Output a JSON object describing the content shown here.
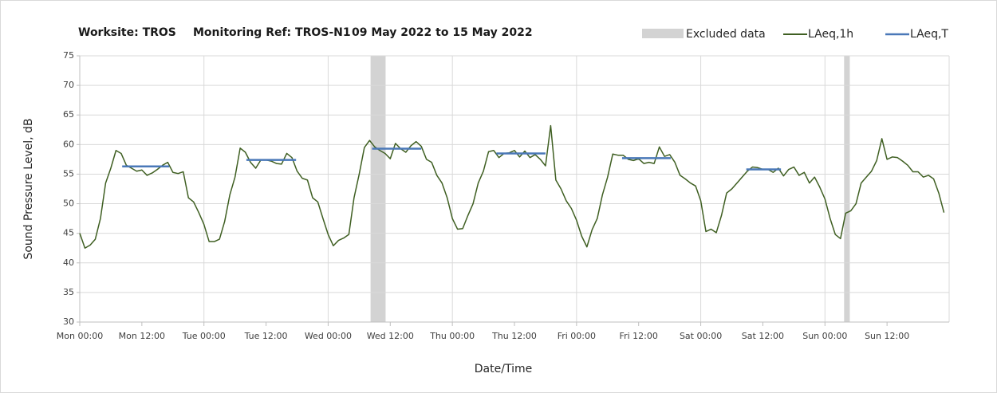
{
  "chart_data": {
    "type": "line",
    "title": [
      "Worksite: TROS",
      "Monitoring Ref: TROS-N1",
      "09 May 2022 to 15 May 2022"
    ],
    "xlabel": "Date/Time",
    "ylabel": "Sound Pressure Level, dB",
    "xlim": [
      0,
      168
    ],
    "ylim": [
      30,
      75
    ],
    "yticks": [
      30,
      35,
      40,
      45,
      50,
      55,
      60,
      65,
      70,
      75
    ],
    "xticks": [
      {
        "value": 0,
        "label": "Mon 00:00"
      },
      {
        "value": 12,
        "label": "Mon 12:00"
      },
      {
        "value": 24,
        "label": "Tue 00:00"
      },
      {
        "value": 36,
        "label": "Tue 12:00"
      },
      {
        "value": 48,
        "label": "Wed 00:00"
      },
      {
        "value": 60,
        "label": "Wed 12:00"
      },
      {
        "value": 72,
        "label": "Thu 00:00"
      },
      {
        "value": 84,
        "label": "Thu 12:00"
      },
      {
        "value": 96,
        "label": "Fri 00:00"
      },
      {
        "value": 108,
        "label": "Fri 12:00"
      },
      {
        "value": 120,
        "label": "Sat 00:00"
      },
      {
        "value": 132,
        "label": "Sat 12:00"
      },
      {
        "value": 144,
        "label": "Sun 00:00"
      },
      {
        "value": 156,
        "label": "Sun 12:00"
      }
    ],
    "grid": true,
    "excluded": {
      "name": "Excluded data",
      "color": "#d3d3d3",
      "ranges": [
        [
          56.2,
          59.1
        ],
        [
          147.7,
          148.8
        ]
      ]
    },
    "x": [
      0,
      1,
      2,
      3,
      4,
      5,
      6,
      7,
      8,
      9,
      10,
      11,
      12,
      13,
      14,
      15,
      16,
      17,
      18,
      19,
      20,
      21,
      22,
      23,
      24,
      25,
      26,
      27,
      28,
      29,
      30,
      31,
      32,
      33,
      34,
      35,
      36,
      37,
      38,
      39,
      40,
      41,
      42,
      43,
      44,
      45,
      46,
      47,
      48,
      49,
      50,
      51,
      52,
      53,
      54,
      55,
      56,
      57,
      58,
      59,
      60,
      61,
      62,
      63,
      64,
      65,
      66,
      67,
      68,
      69,
      70,
      71,
      72,
      73,
      74,
      75,
      76,
      77,
      78,
      79,
      80,
      81,
      82,
      83,
      84,
      85,
      86,
      87,
      88,
      89,
      90,
      91,
      92,
      93,
      94,
      95,
      96,
      97,
      98,
      99,
      100,
      101,
      102,
      103,
      104,
      105,
      106,
      107,
      108,
      109,
      110,
      111,
      112,
      113,
      114,
      115,
      116,
      117,
      118,
      119,
      120,
      121,
      122,
      123,
      124,
      125,
      126,
      127,
      128,
      129,
      130,
      131,
      132,
      133,
      134,
      135,
      136,
      137,
      138,
      139,
      140,
      141,
      142,
      143,
      144,
      145,
      146,
      147,
      148,
      149,
      150,
      151,
      152,
      153,
      154,
      155,
      156,
      157,
      158,
      159,
      160,
      161,
      162,
      163,
      164,
      165,
      166,
      167
    ],
    "series": [
      {
        "name": "LAeq,1h",
        "color": "#3f5f22",
        "values": [
          45,
          42.5,
          43,
          44,
          47.5,
          53.5,
          56,
          59,
          58.5,
          56.5,
          56,
          55.5,
          55.7,
          54.8,
          55.2,
          55.8,
          56.5,
          57,
          55.3,
          55.1,
          55.4,
          51,
          50.3,
          48.5,
          46.5,
          43.6,
          43.6,
          44,
          47,
          51.5,
          54.5,
          59.4,
          58.7,
          57,
          56,
          57.4,
          57.4,
          57.2,
          56.8,
          56.7,
          58.5,
          57.8,
          55.5,
          54.3,
          54,
          51,
          50.3,
          47.5,
          44.8,
          42.9,
          43.8,
          44.2,
          44.8,
          51,
          55,
          59.5,
          60.7,
          59.6,
          59,
          58.5,
          57.6,
          60.2,
          59.3,
          58.7,
          59.8,
          60.5,
          59.7,
          57.5,
          57,
          54.8,
          53.5,
          51,
          47.5,
          45.7,
          45.8,
          48,
          50,
          53.5,
          55.5,
          58.8,
          59,
          57.8,
          58.5,
          58.6,
          59,
          57.9,
          58.9,
          57.8,
          58.3,
          57.5,
          56.4,
          63.2,
          54,
          52.5,
          50.5,
          49.2,
          47.2,
          44.5,
          42.7,
          45.6,
          47.5,
          51.5,
          54.5,
          58.4,
          58.2,
          58.2,
          57.5,
          57.3,
          57.6,
          56.8,
          57,
          56.8,
          59.6,
          58,
          58.3,
          57,
          54.8,
          54.2,
          53.5,
          53,
          50.5,
          45.3,
          45.7,
          45.1,
          48,
          51.8,
          52.5,
          53.5,
          54.5,
          55.5,
          56.2,
          56.1,
          55.8,
          55.8,
          55.3,
          56,
          54.7,
          55.8,
          56.2,
          54.8,
          55.3,
          53.5,
          54.5,
          52.8,
          50.8,
          47.5,
          44.8,
          44.1,
          48.4,
          48.8,
          50,
          53.5,
          54.5,
          55.5,
          57.3,
          61,
          57.5,
          57.9,
          57.8,
          57.2,
          56.5,
          55.4,
          55.4,
          54.5,
          54.8,
          54.2,
          51.8,
          48.5
        ]
      },
      {
        "name": "LAeq,T",
        "color": "#4a78b8",
        "segments": [
          {
            "start": 8.2,
            "end": 17.3,
            "value": 56.3
          },
          {
            "start": 32.2,
            "end": 41.8,
            "value": 57.4
          },
          {
            "start": 56.5,
            "end": 66,
            "value": 59.3
          },
          {
            "start": 80.5,
            "end": 90,
            "value": 58.5
          },
          {
            "start": 104.8,
            "end": 114.2,
            "value": 57.7
          },
          {
            "start": 128.8,
            "end": 135.5,
            "value": 55.8
          }
        ]
      }
    ]
  }
}
